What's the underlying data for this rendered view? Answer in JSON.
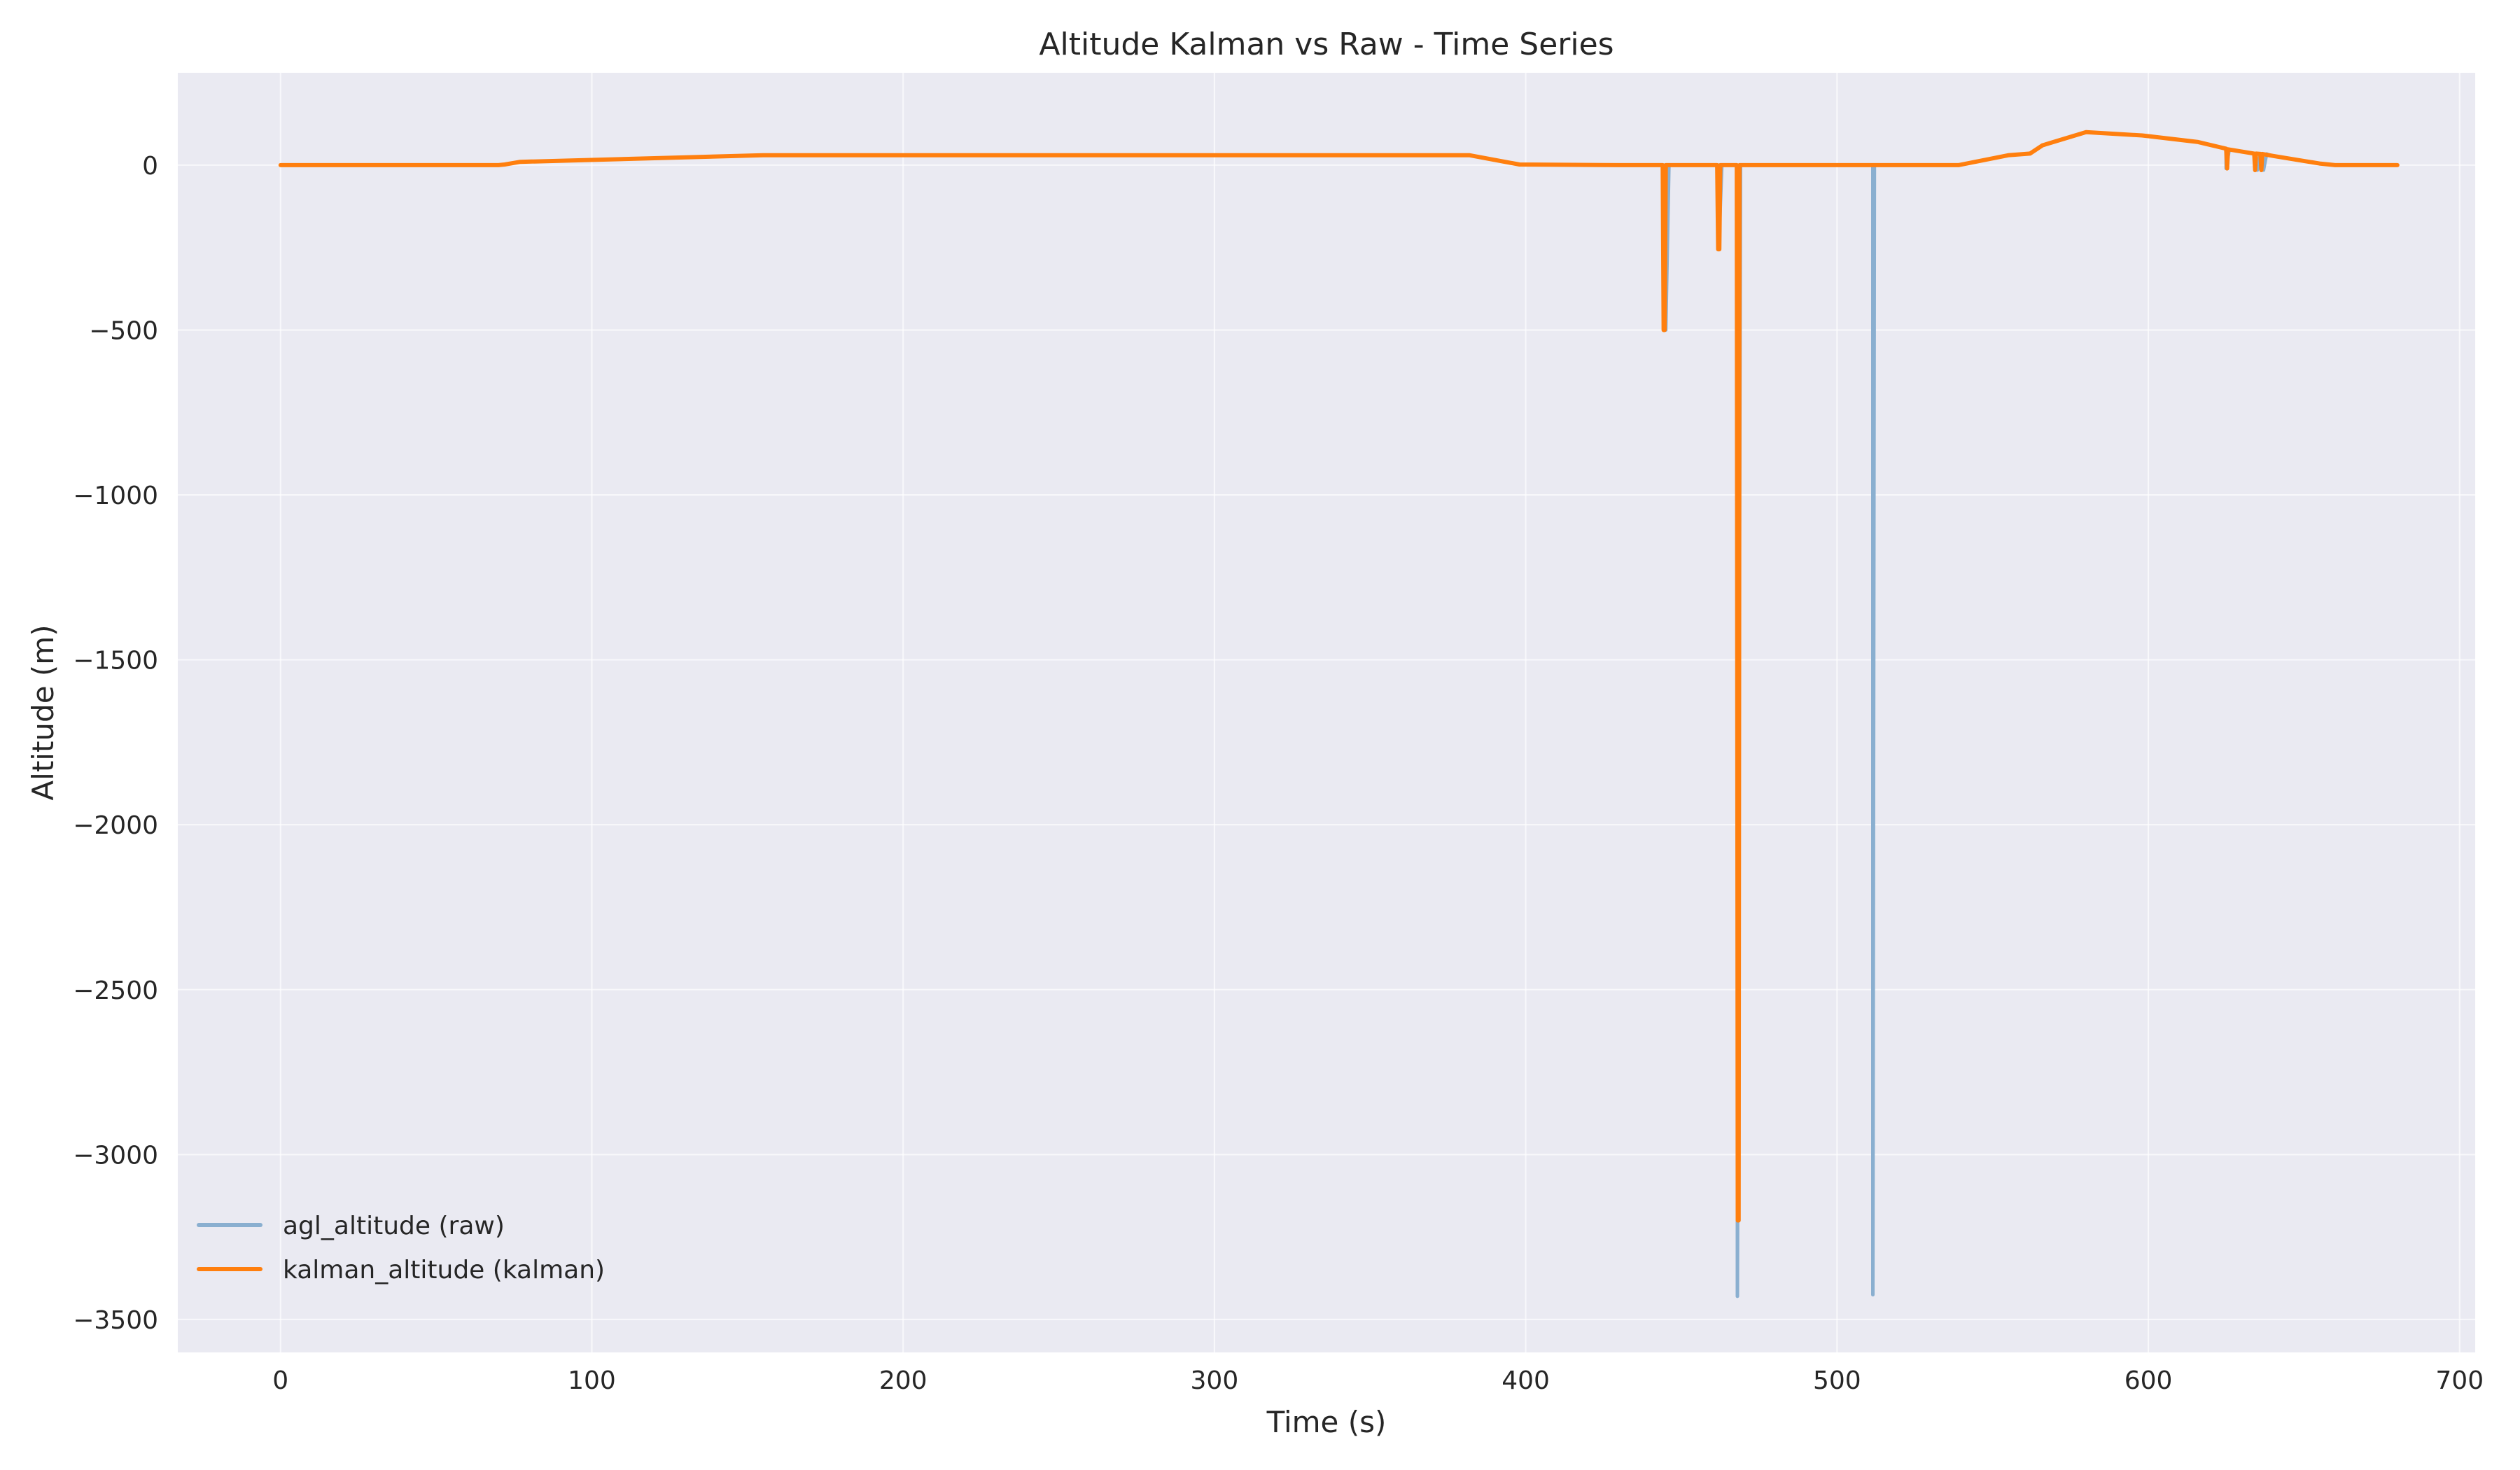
{
  "chart_data": {
    "type": "line",
    "title": "Altitude Kalman vs Raw - Time Series",
    "xlabel": "Time (s)",
    "ylabel": "Altitude (m)",
    "xlim": [
      -33,
      705
    ],
    "ylim": [
      -3600,
      280
    ],
    "x_ticks": [
      0,
      100,
      200,
      300,
      400,
      500,
      600,
      700
    ],
    "y_ticks": [
      0,
      -500,
      -1000,
      -1500,
      -2000,
      -2500,
      -3000,
      -3500
    ],
    "x_tick_labels": [
      "0",
      "100",
      "200",
      "300",
      "400",
      "500",
      "600",
      "700"
    ],
    "y_tick_labels": [
      "0",
      "−500",
      "−1000",
      "−1500",
      "−2000",
      "−2500",
      "−3000",
      "−3500"
    ],
    "grid": true,
    "legend_position": "lower-left",
    "colors": {
      "background": "#eaeaf2",
      "grid": "#ffffff",
      "raw": "#8aafd0",
      "kalman": "#ff7f0e"
    },
    "series": [
      {
        "name": "agl_altitude (raw)",
        "color": "#8aafd0",
        "x": [
          0,
          70,
          72,
          77,
          155,
          382,
          398,
          430,
          445,
          445,
          446,
          462,
          462,
          463,
          468,
          468,
          469,
          500,
          511.5,
          511.5,
          512,
          539,
          555,
          562,
          566,
          580,
          598,
          600,
          616,
          625,
          625,
          626,
          634,
          635,
          636,
          637,
          638,
          639,
          640,
          655,
          660,
          680
        ],
        "y": [
          0,
          0,
          2,
          10,
          30,
          30,
          2,
          0,
          0,
          -500,
          0,
          0,
          -255,
          0,
          0,
          -3430,
          0,
          0,
          0,
          -3425,
          0,
          0,
          30,
          35,
          60,
          100,
          90,
          88,
          70,
          50,
          -10,
          48,
          35,
          -15,
          35,
          -15,
          34,
          30,
          28,
          5,
          0,
          0
        ]
      },
      {
        "name": "kalman_altitude (kalman)",
        "color": "#ff7f0e",
        "x": [
          0,
          70,
          72,
          77,
          155,
          382,
          398,
          430,
          444,
          444.3,
          444.6,
          445,
          461.5,
          461.8,
          462.2,
          462.5,
          467.8,
          468.1,
          468.4,
          468.7,
          500,
          539,
          555,
          562,
          566,
          580,
          598,
          600,
          616,
          625,
          625.3,
          625.6,
          634,
          634.3,
          634.6,
          636,
          636.3,
          636.6,
          640,
          655,
          660,
          680
        ],
        "y": [
          0,
          0,
          2,
          10,
          30,
          30,
          2,
          0,
          0,
          -500,
          -500,
          0,
          0,
          -255,
          -255,
          0,
          0,
          -3200,
          -3200,
          0,
          0,
          0,
          30,
          35,
          60,
          100,
          90,
          88,
          70,
          50,
          -10,
          48,
          35,
          -15,
          35,
          34,
          -15,
          34,
          28,
          5,
          0,
          0
        ]
      }
    ]
  }
}
